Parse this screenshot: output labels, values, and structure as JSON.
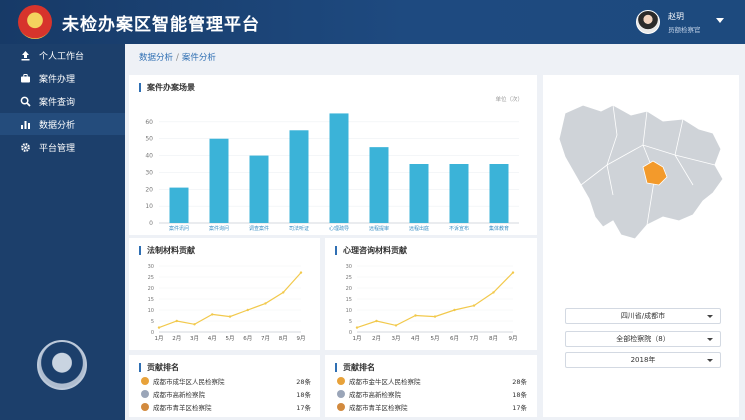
{
  "header": {
    "title": "未检办案区智能管理平台",
    "user": {
      "name": "赵玥",
      "role": "员额检察官"
    }
  },
  "sidebar": {
    "items": [
      {
        "label": "个人工作台",
        "icon": "upload-icon",
        "active": false
      },
      {
        "label": "案件办理",
        "icon": "briefcase-icon",
        "active": false
      },
      {
        "label": "案件查询",
        "icon": "search-icon",
        "active": false
      },
      {
        "label": "数据分析",
        "icon": "bar-chart-icon",
        "active": true
      },
      {
        "label": "平台管理",
        "icon": "gear-icon",
        "active": false
      }
    ]
  },
  "breadcrumb": {
    "parent": "数据分析",
    "separator": "/",
    "current": "案件分析"
  },
  "charts": {
    "main": {
      "title": "案件办案场景",
      "unit": "单位（次）",
      "chart_data": {
        "type": "bar",
        "categories": [
          "案件讯问",
          "案件询问",
          "调查案件",
          "司法听证",
          "心理疏导",
          "远程提审",
          "远程出庭",
          "不诉宣布",
          "集体教育"
        ],
        "values": [
          21,
          50,
          40,
          55,
          65,
          45,
          35,
          35,
          35
        ],
        "ylim": [
          0,
          70
        ],
        "yticks": [
          0,
          10,
          20,
          30,
          40,
          50,
          60
        ],
        "color": "#3bb3d8"
      }
    },
    "legal": {
      "title": "法制材料贡献",
      "chart_data": {
        "type": "line",
        "categories": [
          "1月",
          "2月",
          "3月",
          "4月",
          "5月",
          "6月",
          "7月",
          "8月",
          "9月"
        ],
        "values": [
          2,
          5,
          3.5,
          8,
          7,
          10,
          13,
          18,
          27
        ],
        "ylim": [
          0,
          30
        ],
        "yticks": [
          0,
          5,
          10,
          15,
          20,
          25,
          30
        ],
        "color": "#f2c94c"
      }
    },
    "psych": {
      "title": "心理咨询材料贡献",
      "chart_data": {
        "type": "line",
        "categories": [
          "1月",
          "2月",
          "3月",
          "4月",
          "5月",
          "6月",
          "7月",
          "8月",
          "9月"
        ],
        "values": [
          2,
          5,
          3,
          7.5,
          7,
          10,
          12,
          18,
          27
        ],
        "ylim": [
          0,
          30
        ],
        "yticks": [
          0,
          5,
          10,
          15,
          20,
          25,
          30
        ],
        "color": "#f2c94c"
      }
    }
  },
  "rankings": [
    {
      "title": "贡献排名",
      "rows": [
        {
          "name": "成都市成华区人民检察院",
          "count": "28条",
          "medal": "#e8a23a"
        },
        {
          "name": "成都市高新检察院",
          "count": "18条",
          "medal": "#9aa5b8"
        },
        {
          "name": "成都市青羊区检察院",
          "count": "17条",
          "medal": "#d28a3e"
        }
      ]
    },
    {
      "title": "贡献排名",
      "rows": [
        {
          "name": "成都市金牛区人民检察院",
          "count": "28条",
          "medal": "#e8a23a"
        },
        {
          "name": "成都市高新检察院",
          "count": "18条",
          "medal": "#9aa5b8"
        },
        {
          "name": "成都市青羊区检察院",
          "count": "17条",
          "medal": "#d28a3e"
        }
      ]
    }
  ],
  "filters": {
    "region": "四川省/成都市",
    "procuratorate": "全部检察院（8）",
    "year": "2018年"
  }
}
